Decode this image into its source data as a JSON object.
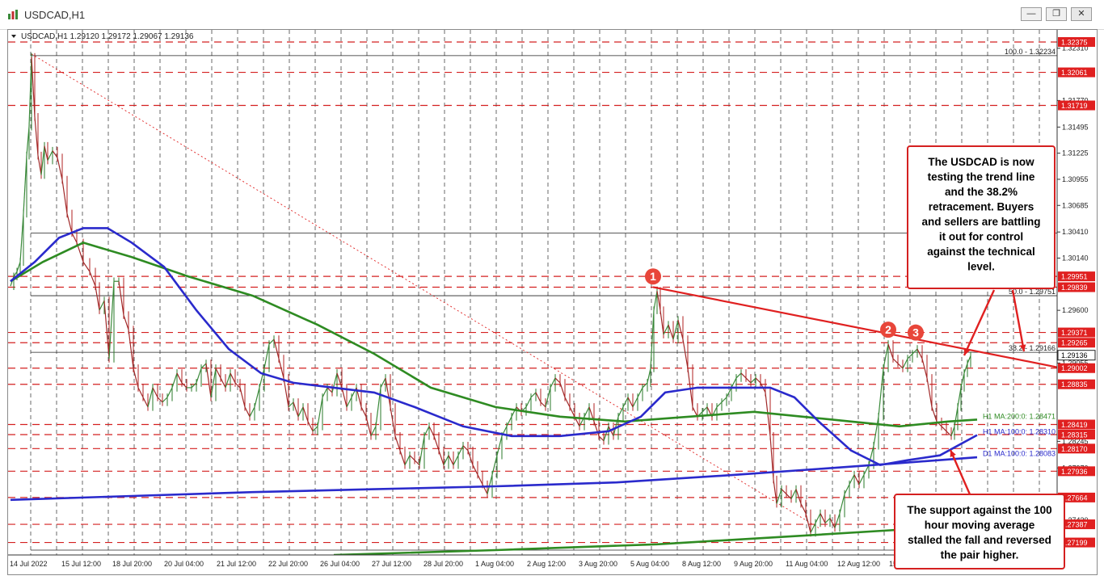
{
  "window": {
    "title": "USDCAD,H1",
    "buttons": {
      "minimize": "—",
      "maximize": "❐",
      "close": "✕"
    }
  },
  "chart_data": {
    "type": "line",
    "symbol": "USDCAD",
    "timeframe": "H1",
    "header": "USDCAD,H1  1.29120 1.29172 1.29067 1.29136",
    "ylim": [
      1.2707,
      1.325
    ],
    "price_ticks": [
      {
        "v": 1.3231,
        "label": "1.32310"
      },
      {
        "v": 1.3177,
        "label": "1.31770"
      },
      {
        "v": 1.31495,
        "label": "1.31495"
      },
      {
        "v": 1.31225,
        "label": "1.31225"
      },
      {
        "v": 1.30955,
        "label": "1.30955"
      },
      {
        "v": 1.30685,
        "label": "1.30685"
      },
      {
        "v": 1.3041,
        "label": "1.30410"
      },
      {
        "v": 1.3014,
        "label": "1.30140"
      },
      {
        "v": 1.296,
        "label": "1.29600"
      },
      {
        "v": 1.29055,
        "label": "1.29055"
      },
      {
        "v": 1.28245,
        "label": "1.28245"
      },
      {
        "v": 1.2797,
        "label": "1.27970"
      },
      {
        "v": 1.2743,
        "label": "1.27430"
      }
    ],
    "price_levels": [
      {
        "v": 1.32375,
        "label": "1.32375"
      },
      {
        "v": 1.32061,
        "label": "1.32061"
      },
      {
        "v": 1.31719,
        "label": "1.31719"
      },
      {
        "v": 1.29951,
        "label": "1.29951"
      },
      {
        "v": 1.29839,
        "label": "1.29839"
      },
      {
        "v": 1.29371,
        "label": "1.29371"
      },
      {
        "v": 1.29265,
        "label": "1.29265"
      },
      {
        "v": 1.29002,
        "label": "1.29002"
      },
      {
        "v": 1.28835,
        "label": "1.28835"
      },
      {
        "v": 1.28419,
        "label": "1.28419"
      },
      {
        "v": 1.28315,
        "label": "1.28315"
      },
      {
        "v": 1.2817,
        "label": "1.28170"
      },
      {
        "v": 1.27936,
        "label": "1.27936"
      },
      {
        "v": 1.27664,
        "label": "1.27664"
      },
      {
        "v": 1.27387,
        "label": "1.27387"
      },
      {
        "v": 1.27199,
        "label": "1.27199"
      }
    ],
    "current_price": {
      "v": 1.29136,
      "label": "1.29136"
    },
    "fib_levels": [
      {
        "v": 1.32234,
        "label": "100.0 - 1.32234"
      },
      {
        "v": 1.29751,
        "label": "50.0 - 1.29751"
      },
      {
        "v": 1.29166,
        "label": "38.2 - 1.29166"
      }
    ],
    "ma_labels": [
      {
        "v": 1.28471,
        "label": "H1 MA:200:0: 1.28471",
        "color": "#2e8b22"
      },
      {
        "v": 1.2831,
        "label": "H1 MA:100:0: 1.28310",
        "color": "#2a2acc"
      },
      {
        "v": 1.28083,
        "label": "D1 MA:100:0: 1.28083",
        "color": "#2a2acc"
      }
    ],
    "x_labels": [
      "14 Jul 2022",
      "15 Jul 12:00",
      "18 Jul 20:00",
      "20 Jul 04:00",
      "21 Jul 12:00",
      "22 Jul 20:00",
      "26 Jul 04:00",
      "27 Jul 12:00",
      "28 Jul 20:00",
      "1 Aug 04:00",
      "2 Aug 12:00",
      "3 Aug 20:00",
      "5 Aug 04:00",
      "8 Aug 12:00",
      "9 Aug 20:00",
      "11 Aug 04:00",
      "12 Aug 12:00",
      "15"
    ],
    "price_path": [
      [
        0,
        1.2985
      ],
      [
        4,
        1.2995
      ],
      [
        8,
        1.3
      ],
      [
        12,
        1.301
      ],
      [
        16,
        1.306
      ],
      [
        20,
        1.312
      ],
      [
        23,
        1.315
      ],
      [
        26,
        1.3222
      ],
      [
        30,
        1.316
      ],
      [
        34,
        1.312
      ],
      [
        38,
        1.31
      ],
      [
        42,
        1.313
      ],
      [
        46,
        1.3115
      ],
      [
        52,
        1.3125
      ],
      [
        58,
        1.3118
      ],
      [
        64,
        1.3095
      ],
      [
        70,
        1.306
      ],
      [
        76,
        1.304
      ],
      [
        82,
        1.303
      ],
      [
        90,
        1.301
      ],
      [
        98,
        1.3
      ],
      [
        105,
        1.2985
      ],
      [
        110,
        1.296
      ],
      [
        116,
        1.297
      ],
      [
        122,
        1.291
      ],
      [
        128,
        1.299
      ],
      [
        134,
        1.299
      ],
      [
        140,
        1.2955
      ],
      [
        146,
        1.294
      ],
      [
        152,
        1.29
      ],
      [
        158,
        1.288
      ],
      [
        164,
        1.287
      ],
      [
        170,
        1.286
      ],
      [
        176,
        1.288
      ],
      [
        182,
        1.287
      ],
      [
        188,
        1.2865
      ],
      [
        194,
        1.287
      ],
      [
        200,
        1.288
      ],
      [
        206,
        1.2895
      ],
      [
        212,
        1.2885
      ],
      [
        218,
        1.288
      ],
      [
        224,
        1.288
      ],
      [
        230,
        1.2885
      ],
      [
        236,
        1.29
      ],
      [
        242,
        1.2905
      ],
      [
        248,
        1.287
      ],
      [
        254,
        1.29
      ],
      [
        260,
        1.289
      ],
      [
        266,
        1.288
      ],
      [
        272,
        1.2895
      ],
      [
        278,
        1.2885
      ],
      [
        284,
        1.288
      ],
      [
        290,
        1.286
      ],
      [
        296,
        1.285
      ],
      [
        302,
        1.286
      ],
      [
        308,
        1.288
      ],
      [
        314,
        1.29
      ],
      [
        320,
        1.2925
      ],
      [
        326,
        1.293
      ],
      [
        332,
        1.291
      ],
      [
        338,
        1.289
      ],
      [
        344,
        1.286
      ],
      [
        350,
        1.2865
      ],
      [
        356,
        1.285
      ],
      [
        362,
        1.286
      ],
      [
        368,
        1.2845
      ],
      [
        374,
        1.2835
      ],
      [
        380,
        1.284
      ],
      [
        386,
        1.287
      ],
      [
        392,
        1.288
      ],
      [
        398,
        1.2875
      ],
      [
        404,
        1.2895
      ],
      [
        410,
        1.288
      ],
      [
        416,
        1.286
      ],
      [
        422,
        1.287
      ],
      [
        428,
        1.288
      ],
      [
        434,
        1.286
      ],
      [
        440,
        1.285
      ],
      [
        446,
        1.283
      ],
      [
        452,
        1.284
      ],
      [
        458,
        1.288
      ],
      [
        464,
        1.289
      ],
      [
        470,
        1.286
      ],
      [
        476,
        1.283
      ],
      [
        482,
        1.2815
      ],
      [
        488,
        1.28
      ],
      [
        494,
        1.281
      ],
      [
        500,
        1.2805
      ],
      [
        506,
        1.28
      ],
      [
        512,
        1.283
      ],
      [
        518,
        1.284
      ],
      [
        524,
        1.283
      ],
      [
        530,
        1.2815
      ],
      [
        536,
        1.28
      ],
      [
        542,
        1.281
      ],
      [
        548,
        1.28
      ],
      [
        554,
        1.281
      ],
      [
        560,
        1.282
      ],
      [
        566,
        1.2815
      ],
      [
        572,
        1.28
      ],
      [
        578,
        1.279
      ],
      [
        584,
        1.278
      ],
      [
        590,
        1.277
      ],
      [
        596,
        1.279
      ],
      [
        602,
        1.281
      ],
      [
        608,
        1.283
      ],
      [
        614,
        1.284
      ],
      [
        620,
        1.285
      ],
      [
        626,
        1.286
      ],
      [
        632,
        1.2855
      ],
      [
        638,
        1.286
      ],
      [
        644,
        1.287
      ],
      [
        650,
        1.2875
      ],
      [
        656,
        1.2865
      ],
      [
        662,
        1.286
      ],
      [
        668,
        1.288
      ],
      [
        674,
        1.289
      ],
      [
        680,
        1.2885
      ],
      [
        686,
        1.287
      ],
      [
        692,
        1.286
      ],
      [
        698,
        1.285
      ],
      [
        704,
        1.284
      ],
      [
        710,
        1.285
      ],
      [
        716,
        1.286
      ],
      [
        722,
        1.2845
      ],
      [
        728,
        1.283
      ],
      [
        734,
        1.2825
      ],
      [
        740,
        1.284
      ],
      [
        746,
        1.283
      ],
      [
        752,
        1.285
      ],
      [
        758,
        1.286
      ],
      [
        764,
        1.287
      ],
      [
        770,
        1.286
      ],
      [
        776,
        1.287
      ],
      [
        782,
        1.288
      ],
      [
        788,
        1.2885
      ],
      [
        792,
        1.29
      ],
      [
        796,
        1.296
      ],
      [
        800,
        1.298
      ],
      [
        804,
        1.296
      ],
      [
        808,
        1.2935
      ],
      [
        814,
        1.2945
      ],
      [
        820,
        1.293
      ],
      [
        826,
        1.295
      ],
      [
        832,
        1.293
      ],
      [
        838,
        1.29
      ],
      [
        844,
        1.286
      ],
      [
        850,
        1.285
      ],
      [
        856,
        1.2855
      ],
      [
        862,
        1.286
      ],
      [
        868,
        1.285
      ],
      [
        874,
        1.286
      ],
      [
        880,
        1.2865
      ],
      [
        886,
        1.287
      ],
      [
        892,
        1.288
      ],
      [
        898,
        1.289
      ],
      [
        904,
        1.2895
      ],
      [
        910,
        1.289
      ],
      [
        916,
        1.2885
      ],
      [
        922,
        1.289
      ],
      [
        928,
        1.2885
      ],
      [
        934,
        1.2875
      ],
      [
        940,
        1.283
      ],
      [
        944,
        1.2785
      ],
      [
        948,
        1.276
      ],
      [
        954,
        1.2775
      ],
      [
        960,
        1.277
      ],
      [
        966,
        1.2765
      ],
      [
        972,
        1.2775
      ],
      [
        978,
        1.276
      ],
      [
        984,
        1.275
      ],
      [
        990,
        1.273
      ],
      [
        996,
        1.274
      ],
      [
        1002,
        1.275
      ],
      [
        1008,
        1.274
      ],
      [
        1014,
        1.2745
      ],
      [
        1020,
        1.2735
      ],
      [
        1026,
        1.275
      ],
      [
        1032,
        1.277
      ],
      [
        1038,
        1.278
      ],
      [
        1044,
        1.279
      ],
      [
        1050,
        1.278
      ],
      [
        1056,
        1.279
      ],
      [
        1062,
        1.28
      ],
      [
        1068,
        1.282
      ],
      [
        1074,
        1.285
      ],
      [
        1080,
        1.29
      ],
      [
        1086,
        1.2925
      ],
      [
        1092,
        1.291
      ],
      [
        1098,
        1.2905
      ],
      [
        1104,
        1.29
      ],
      [
        1110,
        1.291
      ],
      [
        1116,
        1.2915
      ],
      [
        1122,
        1.292
      ],
      [
        1128,
        1.291
      ],
      [
        1134,
        1.289
      ],
      [
        1140,
        1.286
      ],
      [
        1146,
        1.2845
      ],
      [
        1152,
        1.284
      ],
      [
        1158,
        1.2835
      ],
      [
        1164,
        1.283
      ],
      [
        1168,
        1.284
      ],
      [
        1172,
        1.286
      ],
      [
        1176,
        1.288
      ],
      [
        1180,
        1.2895
      ],
      [
        1184,
        1.2905
      ],
      [
        1188,
        1.2913
      ]
    ],
    "series": [
      {
        "name": "H1 MA:200:0",
        "color": "#2e8b22",
        "points": [
          [
            0,
            1.299
          ],
          [
            40,
            1.301
          ],
          [
            90,
            1.303
          ],
          [
            150,
            1.3015
          ],
          [
            220,
            1.2995
          ],
          [
            300,
            1.2975
          ],
          [
            380,
            1.2945
          ],
          [
            450,
            1.2915
          ],
          [
            520,
            1.288
          ],
          [
            600,
            1.286
          ],
          [
            680,
            1.285
          ],
          [
            760,
            1.2845
          ],
          [
            840,
            1.285
          ],
          [
            920,
            1.2855
          ],
          [
            980,
            1.285
          ],
          [
            1040,
            1.2845
          ],
          [
            1100,
            1.284
          ],
          [
            1160,
            1.2845
          ],
          [
            1196,
            1.2847
          ]
        ]
      },
      {
        "name": "H1 MA:100:0",
        "color": "#2a2acc",
        "points": [
          [
            0,
            1.299
          ],
          [
            30,
            1.301
          ],
          [
            60,
            1.3035
          ],
          [
            90,
            1.3045
          ],
          [
            120,
            1.3045
          ],
          [
            150,
            1.303
          ],
          [
            190,
            1.3005
          ],
          [
            230,
            1.296
          ],
          [
            270,
            1.292
          ],
          [
            310,
            1.2895
          ],
          [
            350,
            1.2885
          ],
          [
            400,
            1.288
          ],
          [
            450,
            1.2875
          ],
          [
            500,
            1.286
          ],
          [
            560,
            1.284
          ],
          [
            620,
            1.283
          ],
          [
            680,
            1.283
          ],
          [
            740,
            1.2835
          ],
          [
            780,
            1.285
          ],
          [
            810,
            1.2875
          ],
          [
            850,
            1.288
          ],
          [
            900,
            1.288
          ],
          [
            940,
            1.288
          ],
          [
            970,
            1.287
          ],
          [
            1000,
            1.2845
          ],
          [
            1040,
            1.2815
          ],
          [
            1076,
            1.28
          ],
          [
            1110,
            1.2805
          ],
          [
            1150,
            1.281
          ],
          [
            1196,
            1.2831
          ]
        ]
      },
      {
        "name": "D1 MA:100:0",
        "color": "#2a2acc",
        "points": [
          [
            0,
            1.2764
          ],
          [
            150,
            1.2768
          ],
          [
            300,
            1.2772
          ],
          [
            450,
            1.2775
          ],
          [
            600,
            1.2778
          ],
          [
            750,
            1.2782
          ],
          [
            900,
            1.279
          ],
          [
            1000,
            1.2796
          ],
          [
            1100,
            1.2802
          ],
          [
            1196,
            1.2808
          ]
        ]
      },
      {
        "name": "D1 MA:200:0",
        "color": "#2e8b22",
        "points": [
          [
            400,
            1.2707
          ],
          [
            600,
            1.2712
          ],
          [
            800,
            1.2718
          ],
          [
            1000,
            1.2728
          ],
          [
            1196,
            1.2738
          ]
        ]
      }
    ],
    "trendline": {
      "color": "#e02020",
      "from": [
        795,
        1.2984
      ],
      "to": [
        1296,
        1.2901
      ]
    },
    "dotted_trend": {
      "color": "#e02020",
      "from": [
        26,
        1.3225
      ],
      "to": [
        1000,
        1.2735
      ]
    },
    "markers": [
      {
        "label": "1",
        "x": 795,
        "v": 1.2995
      },
      {
        "label": "2",
        "x": 1086,
        "v": 1.294
      },
      {
        "label": "3",
        "x": 1120,
        "v": 1.2937
      }
    ],
    "annotations": [
      {
        "name": "trendline-note",
        "text": [
          "The USDCAD is now",
          "testing the trend line",
          "and the 38.2%",
          "retracement.  Buyers",
          "and sellers are battling",
          "it out for control",
          "against the technical",
          "level."
        ]
      },
      {
        "name": "ma-support-note",
        "text": [
          "The support against the 100",
          "hour moving average",
          "stalled the fall and reversed",
          "the pair higher."
        ]
      }
    ]
  }
}
